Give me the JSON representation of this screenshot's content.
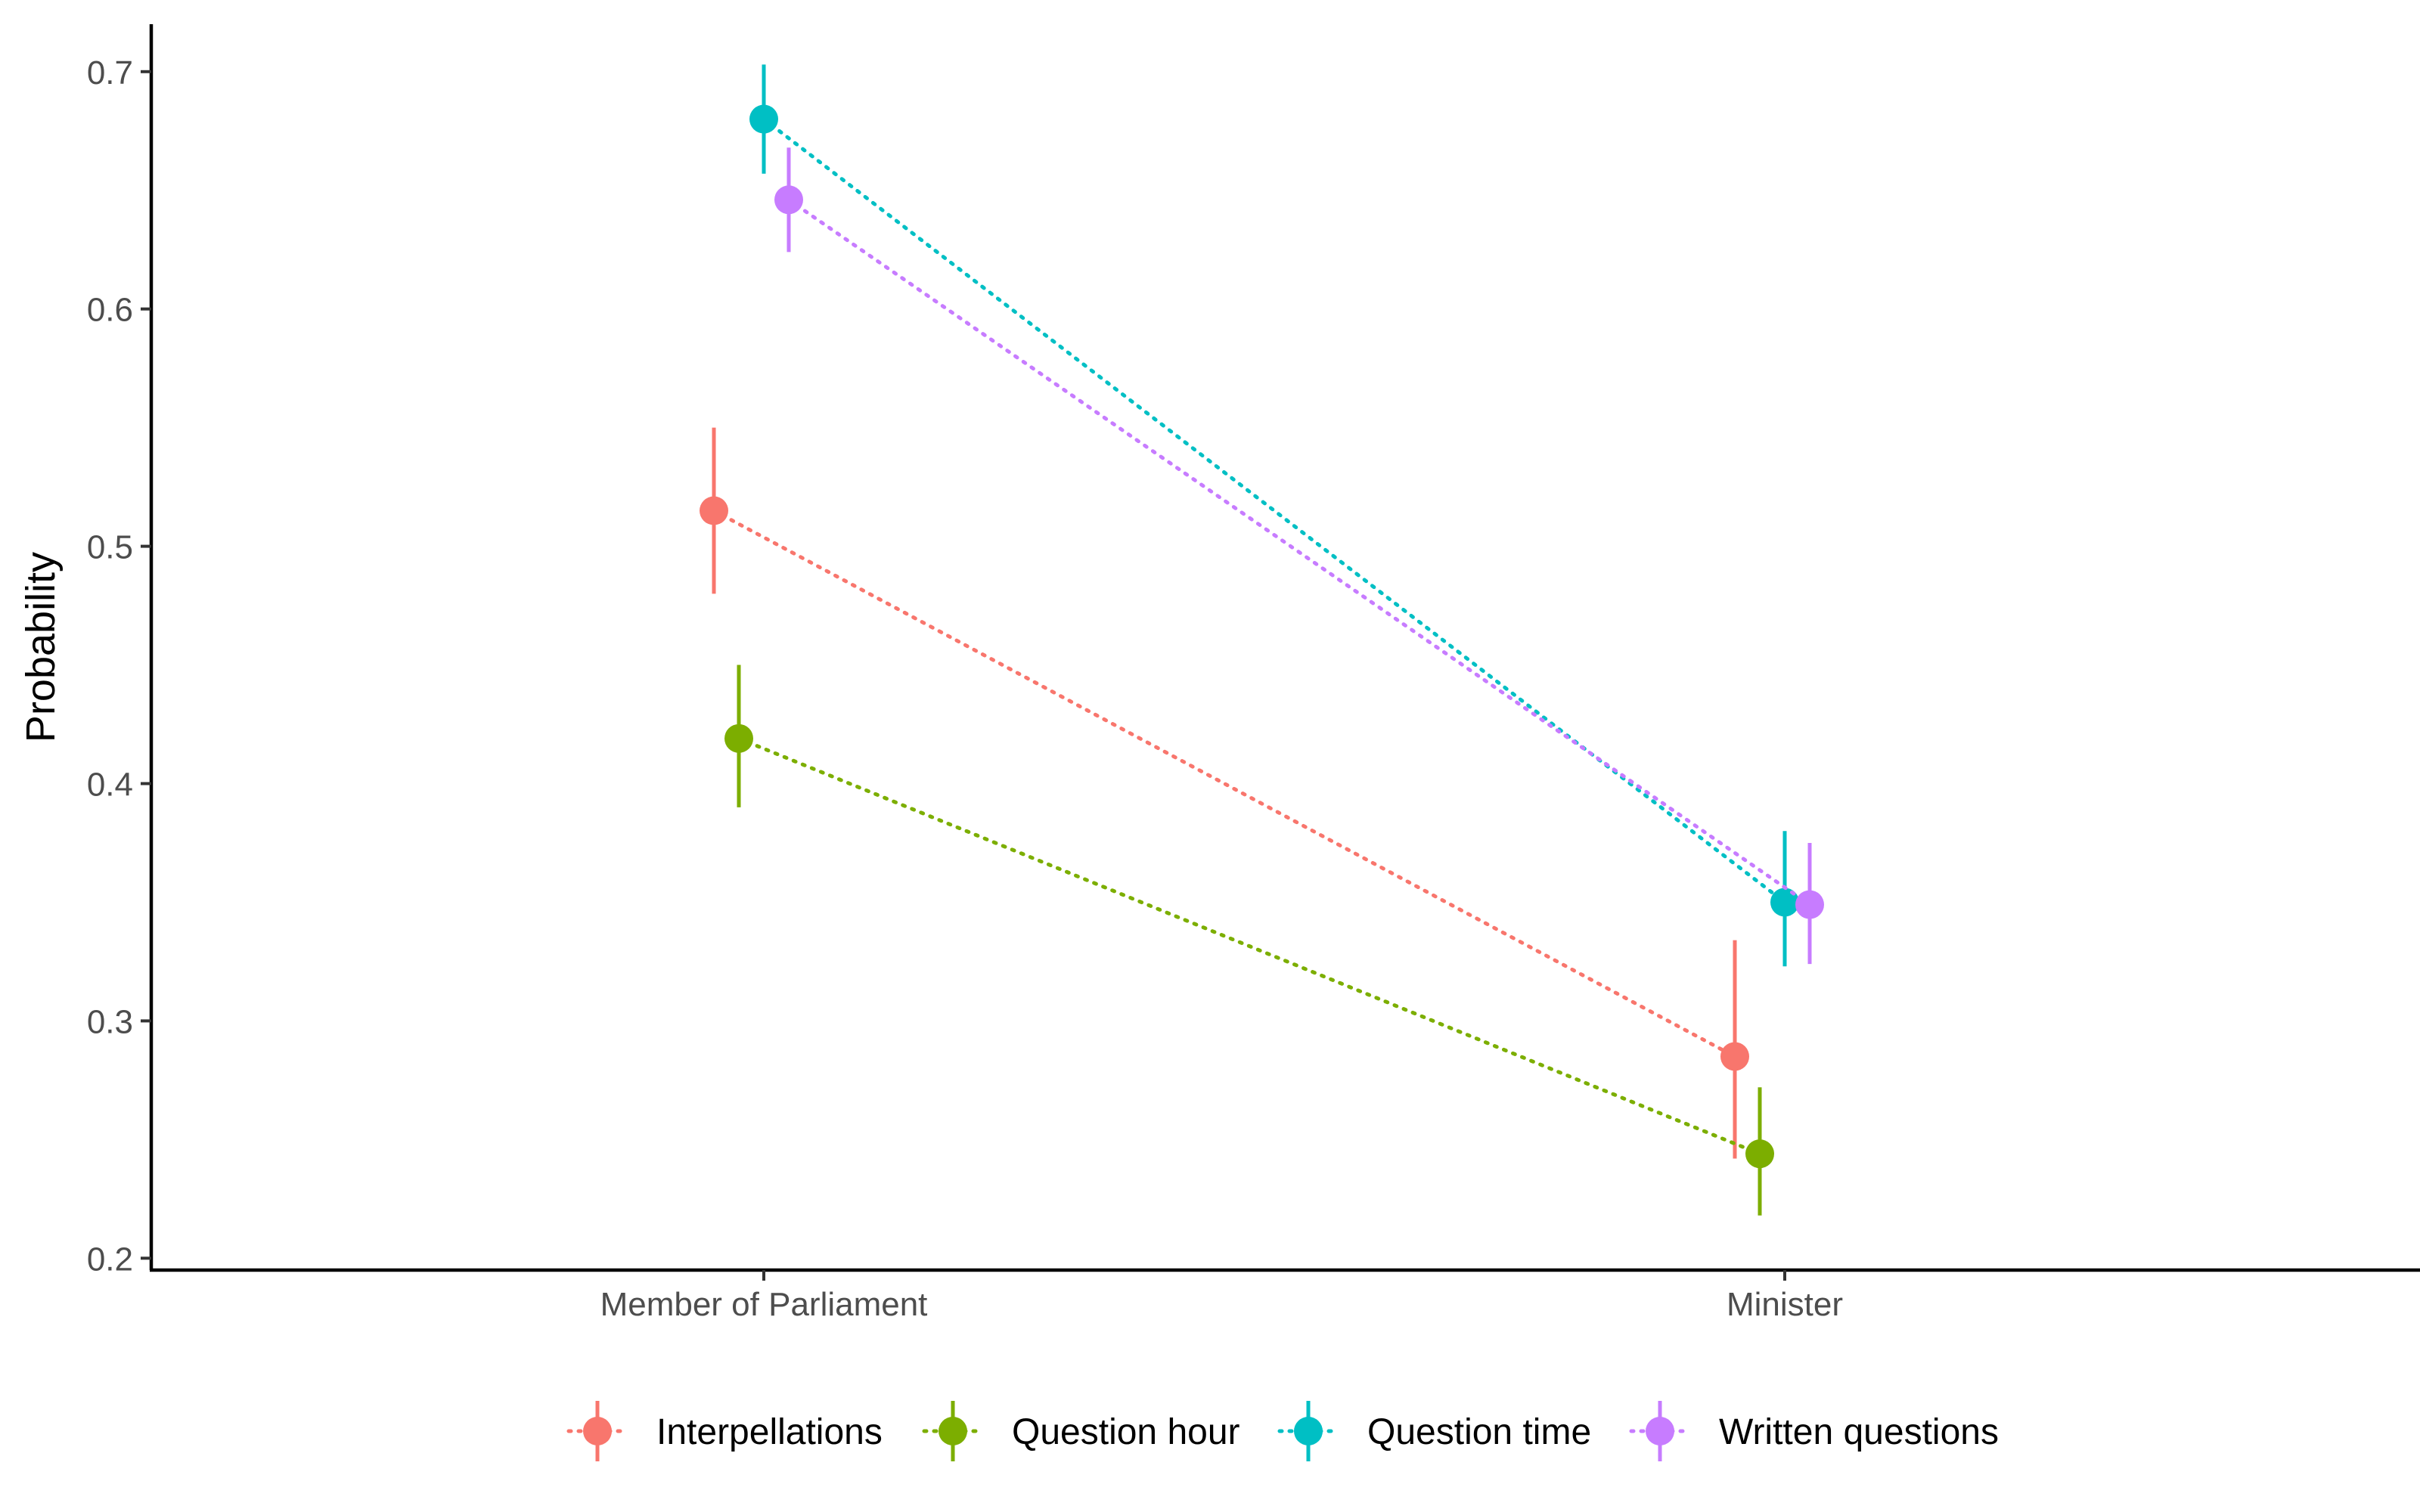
{
  "chart_data": {
    "type": "line",
    "title": "",
    "xlabel": "",
    "ylabel": "Probability",
    "categories": [
      "Member of Parliament",
      "Minister"
    ],
    "ylim": [
      0.195,
      0.72
    ],
    "yticks": [
      0.2,
      0.3,
      0.4,
      0.5,
      0.6,
      0.7
    ],
    "ytick_labels": [
      "0.2",
      "0.3",
      "0.4",
      "0.5",
      "0.6",
      "0.7"
    ],
    "grid": false,
    "line_style": "dotted",
    "legend_position": "bottom",
    "series": [
      {
        "name": "Interpellations",
        "color": "#F8766D",
        "values": [
          0.515,
          0.285
        ],
        "lower": [
          0.48,
          0.242
        ],
        "upper": [
          0.55,
          0.334
        ]
      },
      {
        "name": "Question hour",
        "color": "#7CAE00",
        "values": [
          0.419,
          0.244
        ],
        "lower": [
          0.39,
          0.218
        ],
        "upper": [
          0.45,
          0.272
        ]
      },
      {
        "name": "Question time",
        "color": "#00BFC4",
        "values": [
          0.68,
          0.35
        ],
        "lower": [
          0.657,
          0.323
        ],
        "upper": [
          0.703,
          0.38
        ]
      },
      {
        "name": "Written questions",
        "color": "#C77CFF",
        "values": [
          0.646,
          0.349
        ],
        "lower": [
          0.624,
          0.324
        ],
        "upper": [
          0.668,
          0.375
        ]
      }
    ]
  }
}
